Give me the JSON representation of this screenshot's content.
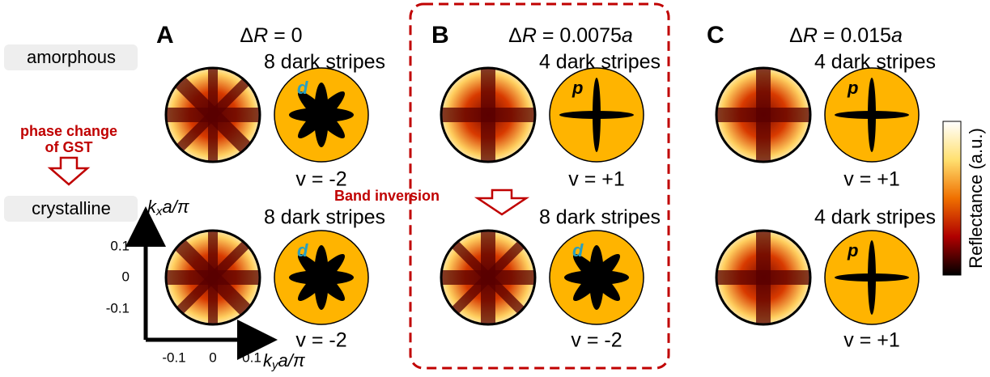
{
  "row_labels": [
    "amorphous",
    "crystalline"
  ],
  "transition": [
    "phase change",
    "of GST"
  ],
  "band_inversion": "Band inversion",
  "panels": [
    {
      "letter": "A",
      "delta_r": {
        "symbol": "Δ",
        "variable": "R",
        "value": " = 0"
      },
      "rows": [
        {
          "stripes": "8 dark stripes",
          "orbital": "d",
          "winding": "v = -2"
        },
        {
          "stripes": "8 dark stripes",
          "orbital": "d",
          "winding": "v = -2"
        }
      ]
    },
    {
      "letter": "B",
      "delta_r": {
        "symbol": "Δ",
        "variable": "R",
        "value": " = 0.0075",
        "unit": "a"
      },
      "rows": [
        {
          "stripes": "4 dark stripes",
          "orbital": "p",
          "winding": "v = +1"
        },
        {
          "stripes": "8 dark stripes",
          "orbital": "d",
          "winding": "v = -2"
        }
      ]
    },
    {
      "letter": "C",
      "delta_r": {
        "symbol": "Δ",
        "variable": "R",
        "value": " = 0.015",
        "unit": "a"
      },
      "rows": [
        {
          "stripes": "4 dark stripes",
          "orbital": "p",
          "winding": "v = +1"
        },
        {
          "stripes": "4 dark stripes",
          "orbital": "p",
          "winding": "v = +1"
        }
      ]
    }
  ],
  "axes": {
    "y_label": {
      "k": "k",
      "sub": "x",
      "rest": "a/π"
    },
    "x_label": {
      "k": "k",
      "sub": "y",
      "rest": "a/π"
    },
    "y_ticks": [
      "0.1",
      "0",
      "-0.1"
    ],
    "x_ticks": [
      "-0.1",
      "0",
      "0.1"
    ]
  },
  "colorbar_label": "Reflectance (a.u.)"
}
